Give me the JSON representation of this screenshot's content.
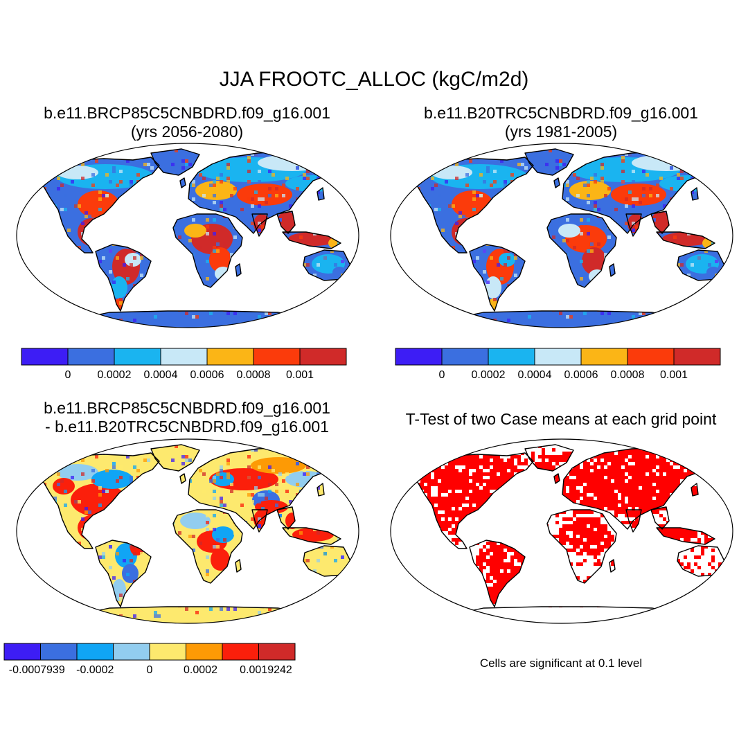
{
  "title": "JJA FROOTC_ALLOC (kgC/m2d)",
  "panels": [
    {
      "title_line1": "b.e11.BRCP85C5CNBDRD.f09_g16.001",
      "title_line2": "(yrs 2056-2080)"
    },
    {
      "title_line1": "b.e11.B20TRC5CNBDRD.f09_g16.001",
      "title_line2": "(yrs 1981-2005)"
    },
    {
      "title_line1": "b.e11.BRCP85C5CNBDRD.f09_g16.001",
      "title_line2": "- b.e11.B20TRC5CNBDRD.f09_g16.001"
    },
    {
      "title_line1": "T-Test of two Case means at each grid point"
    }
  ],
  "colorbars": {
    "absolute": {
      "colors": [
        "#3d1df5",
        "#3b6fe0",
        "#1ab4f0",
        "#c8e8f7",
        "#fbb516",
        "#fb3b0b",
        "#d02a29"
      ],
      "tick_labels": [
        "0",
        "0.0002",
        "0.0004",
        "0.0006",
        "0.0008",
        "0.001"
      ]
    },
    "difference": {
      "colors": [
        "#3d1df5",
        "#3b6fe0",
        "#10a5f5",
        "#92cdef",
        "#fde96e",
        "#fd9a05",
        "#fb1f0b",
        "#d02a29"
      ],
      "tick_labels": [
        "-0.0007939",
        "-0.0002",
        "0",
        "0.0002",
        "0.0019242"
      ]
    }
  },
  "ttest": {
    "significant_color": "#ff0000",
    "note": "Cells are significant at 0.1 level"
  }
}
